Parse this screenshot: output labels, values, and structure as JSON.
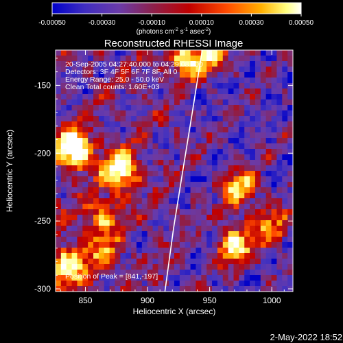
{
  "chart_data": {
    "type": "heatmap",
    "title": "Reconstructed RHESSI Image",
    "xlabel": "Heliocentric X (arcsec)",
    "ylabel": "Heliocentric Y (arcsec)",
    "xlim": [
      826,
      1017
    ],
    "ylim": [
      -302,
      -124
    ],
    "x_ticks": [
      850,
      900,
      950,
      1000
    ],
    "y_ticks": [
      -150,
      -200,
      -250,
      -300
    ],
    "x_tick_labels": [
      "850",
      "900",
      "950",
      "1000"
    ],
    "y_tick_labels": [
      "-150",
      "-200",
      "-250",
      "-300"
    ],
    "colorbar": {
      "range": [
        -0.0005,
        0.0005
      ],
      "ticks": [
        -0.0005,
        -0.0003,
        -0.0001,
        0.0001,
        0.0003,
        0.0005
      ],
      "tick_labels": [
        "-0.00050",
        "-0.00030",
        "-0.00010",
        "0.00010",
        "0.00030",
        "0.00050"
      ],
      "unit_label_base": "(photons cm",
      "unit_label_exp1": "-2",
      "unit_label_mid": " s",
      "unit_label_exp2": "-1",
      "unit_label_mid2": " asec",
      "unit_label_exp3": "-2",
      "unit_label_end": ")"
    },
    "annotations": [
      "20-Sep-2005 04:27:40.000 to 04:29:08.000",
      "Detectors: 3F 4F 5F 6F 7F 8F, All 0",
      "Energy Range: 25.0 - 50.0 keV",
      "Clean    Total counts: 1.60E+03"
    ],
    "peak_label": "Position of Peak = [841,-197]",
    "peak_position": [
      841,
      -197
    ],
    "limb_points": [
      [
        944,
        -124
      ],
      [
        936,
        -170
      ],
      [
        928,
        -215
      ],
      [
        921,
        -255
      ],
      [
        914,
        -302
      ]
    ],
    "hotspots": [
      {
        "x": 841,
        "y": -197,
        "strength": 1.0
      },
      {
        "x": 878,
        "y": -213,
        "strength": 0.82
      },
      {
        "x": 836,
        "y": -283,
        "strength": 0.58
      },
      {
        "x": 932,
        "y": -132,
        "strength": 0.62
      },
      {
        "x": 952,
        "y": -126,
        "strength": 0.58
      },
      {
        "x": 974,
        "y": -226,
        "strength": 0.62
      },
      {
        "x": 970,
        "y": -268,
        "strength": 0.7
      },
      {
        "x": 999,
        "y": -255,
        "strength": 0.48
      },
      {
        "x": 864,
        "y": -247,
        "strength": 0.42
      },
      {
        "x": 866,
        "y": -274,
        "strength": 0.35
      }
    ],
    "timestamp": "2-May-2022 18:52"
  },
  "colors": {
    "background": "#000000",
    "text": "#ffffff",
    "limb": "#ffffff",
    "colormap_stops": [
      "#0000c8",
      "#4432bf",
      "#6b3ba8",
      "#8b214e",
      "#c00000",
      "#ff4a00",
      "#ffb000",
      "#ffff80",
      "#ffffff"
    ]
  }
}
